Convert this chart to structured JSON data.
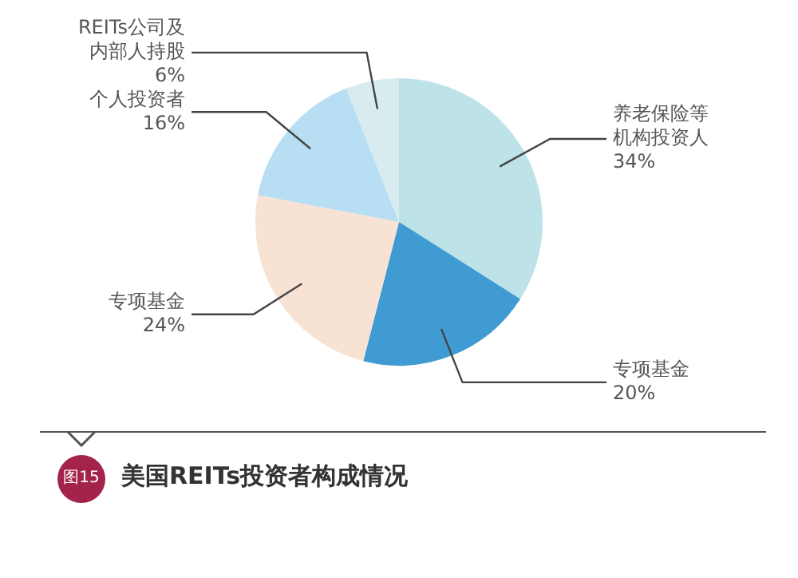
{
  "chart_data": {
    "type": "pie",
    "title": "美国REITs投资者构成情况",
    "annotations": [
      "图15"
    ],
    "categories": [
      "养老保险等机构投资人",
      "专项基金",
      "专项基金",
      "个人投资者",
      "REITs公司及内部人持股"
    ],
    "values": [
      34,
      20,
      24,
      16,
      6
    ],
    "value_labels": [
      "34%",
      "20%",
      "24%",
      "16%",
      "6%"
    ],
    "colors": [
      "#bde3e8",
      "#3f9bd1",
      "#f8e2d4",
      "#b8def4",
      "#d8ecf0"
    ]
  }
}
